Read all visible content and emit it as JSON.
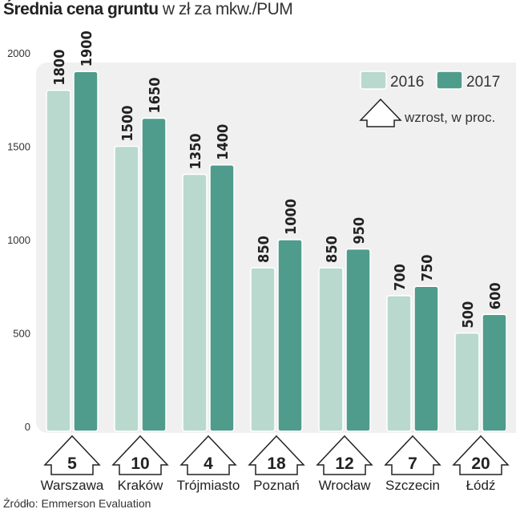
{
  "chart_data": {
    "type": "bar",
    "title": "Średnia cena gruntu",
    "subtitle": "w zł za mkw./PUM",
    "categories": [
      "Warszawa",
      "Kraków",
      "Trójmiasto",
      "Poznań",
      "Wrocław",
      "Szczecin",
      "Łódź"
    ],
    "series": [
      {
        "name": "2016",
        "color": "#b9d9cf",
        "values": [
          1800,
          1500,
          1350,
          850,
          850,
          700,
          500
        ]
      },
      {
        "name": "2017",
        "color": "#4f9c8c",
        "values": [
          1900,
          1650,
          1400,
          1000,
          950,
          750,
          600
        ]
      }
    ],
    "growth_label": "wzrost, w proc.",
    "growth": [
      5,
      10,
      4,
      18,
      12,
      7,
      20
    ],
    "yticks": [
      0,
      500,
      1000,
      1500,
      2000
    ],
    "ylim": [
      0,
      2000
    ],
    "legend": "top-right",
    "grid": false
  },
  "source": "Źródło: Emmerson Evaluation"
}
